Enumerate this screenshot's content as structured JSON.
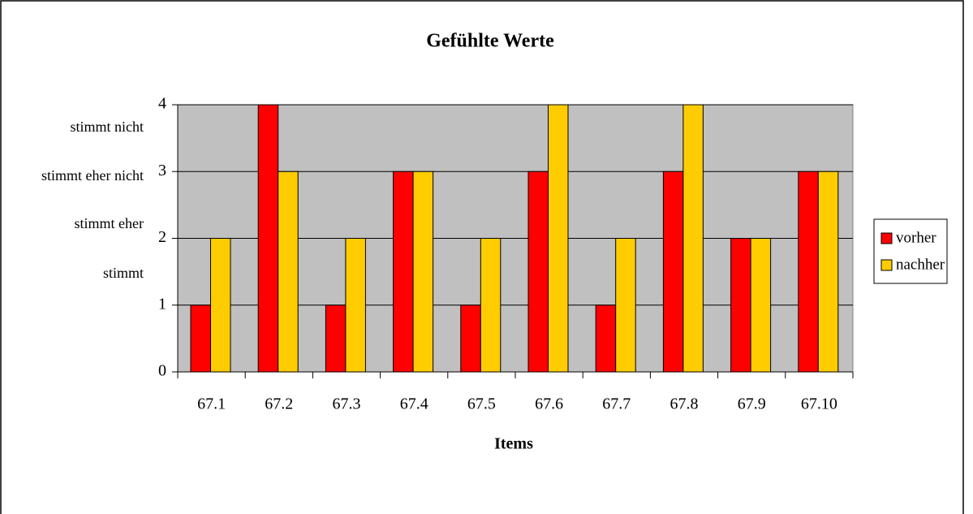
{
  "chart_data": {
    "type": "bar",
    "title": "Gefühlte Werte",
    "x_label": "Items",
    "categories": [
      "67.1",
      "67.2",
      "67.3",
      "67.4",
      "67.5",
      "67.6",
      "67.7",
      "67.8",
      "67.9",
      "67.10"
    ],
    "series": [
      {
        "name": "vorher",
        "color": "#ff0000",
        "values": [
          1,
          4,
          1,
          3,
          1,
          3,
          1,
          3,
          2,
          3
        ]
      },
      {
        "name": "nachher",
        "color": "#ffcc00",
        "values": [
          2,
          3,
          2,
          3,
          2,
          4,
          2,
          4,
          2,
          3
        ]
      }
    ],
    "ylim": [
      0,
      4
    ],
    "yticks": [
      0,
      1,
      2,
      3,
      4
    ],
    "grid": true,
    "legend": "right",
    "plot_background": "#c0c0c0",
    "annotations": [
      "stimmt nicht",
      "stimmt eher nicht",
      "stimmt eher",
      "stimmt"
    ]
  }
}
